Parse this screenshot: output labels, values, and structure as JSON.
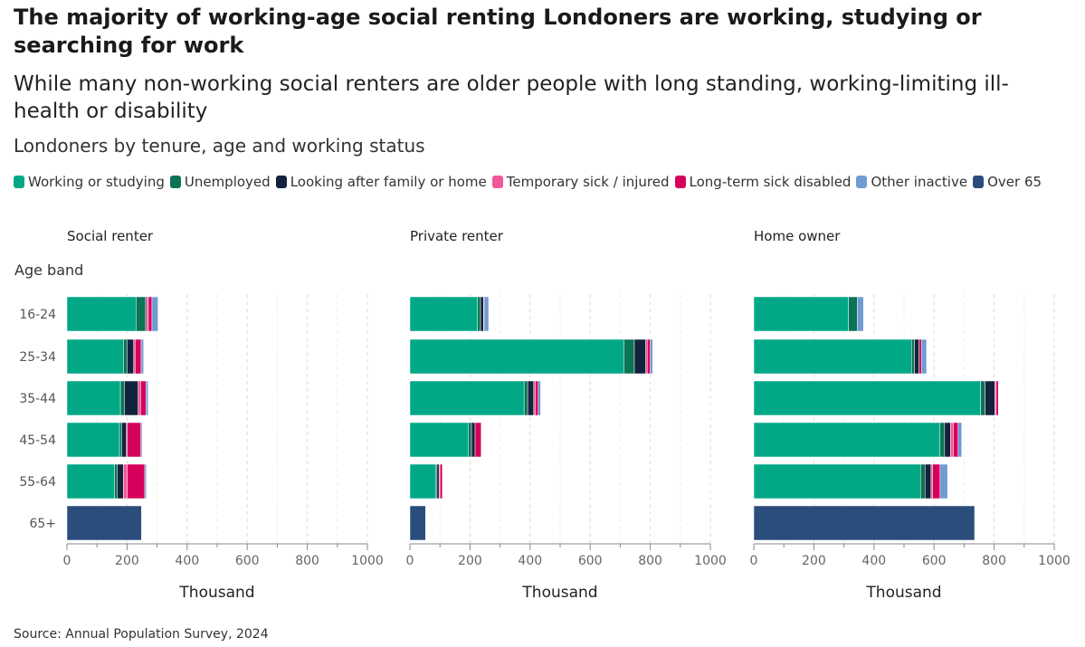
{
  "title": "The majority of working-age social renting Londoners are working, studying or searching for work",
  "subtitle": "While many non-working social renters are older people with long standing, working-limiting ill-health or disability",
  "chart_title": "Londoners by tenure, age and working status",
  "source": "Source: Annual Population Survey, 2024",
  "legend": [
    {
      "label": "Working or studying",
      "color": "#00a886"
    },
    {
      "label": "Unemployed",
      "color": "#0b7356"
    },
    {
      "label": "Looking after family or home",
      "color": "#13233d"
    },
    {
      "label": "Temporary sick / injured",
      "color": "#f2579a"
    },
    {
      "label": "Long-term sick disabled",
      "color": "#d6005c"
    },
    {
      "label": "Other inactive",
      "color": "#6f9ad2"
    },
    {
      "label": "Over 65",
      "color": "#2b4d7c"
    }
  ],
  "chart_data": {
    "type": "bar",
    "orientation": "horizontal",
    "stacked": true,
    "y_title": "Age band",
    "xlabel": "Thousand",
    "xlim": [
      0,
      1000
    ],
    "x_ticks": [
      0,
      200,
      400,
      600,
      800,
      1000
    ],
    "categories": [
      "16-24",
      "25-34",
      "35-44",
      "45-54",
      "55-64",
      "65+"
    ],
    "series_names": [
      "Working or studying",
      "Unemployed",
      "Looking after family or home",
      "Temporary sick / injured",
      "Long-term sick disabled",
      "Other inactive",
      "Over 65"
    ],
    "panels": [
      {
        "name": "Social renter",
        "values": [
          [
            230,
            30,
            5,
            6,
            12,
            20,
            0
          ],
          [
            188,
            12,
            22,
            5,
            20,
            8,
            0
          ],
          [
            178,
            14,
            45,
            8,
            18,
            7,
            0
          ],
          [
            175,
            8,
            15,
            3,
            45,
            4,
            0
          ],
          [
            158,
            10,
            20,
            13,
            58,
            5,
            0
          ],
          [
            0,
            0,
            0,
            0,
            0,
            0,
            248
          ]
        ]
      },
      {
        "name": "Private renter",
        "values": [
          [
            225,
            10,
            10,
            0,
            2,
            15,
            0
          ],
          [
            712,
            35,
            38,
            5,
            10,
            8,
            0
          ],
          [
            380,
            12,
            20,
            5,
            10,
            8,
            0
          ],
          [
            195,
            10,
            12,
            0,
            20,
            0,
            0
          ],
          [
            85,
            5,
            7,
            3,
            8,
            0,
            0
          ],
          [
            0,
            0,
            0,
            0,
            0,
            0,
            52
          ]
        ]
      },
      {
        "name": "Home owner",
        "values": [
          [
            315,
            30,
            0,
            0,
            0,
            20,
            0
          ],
          [
            525,
            10,
            15,
            0,
            8,
            17,
            0
          ],
          [
            755,
            15,
            32,
            5,
            7,
            0,
            0
          ],
          [
            620,
            15,
            20,
            10,
            15,
            12,
            0
          ],
          [
            555,
            15,
            20,
            5,
            25,
            25,
            0
          ],
          [
            0,
            0,
            0,
            0,
            0,
            0,
            735
          ]
        ]
      }
    ]
  }
}
